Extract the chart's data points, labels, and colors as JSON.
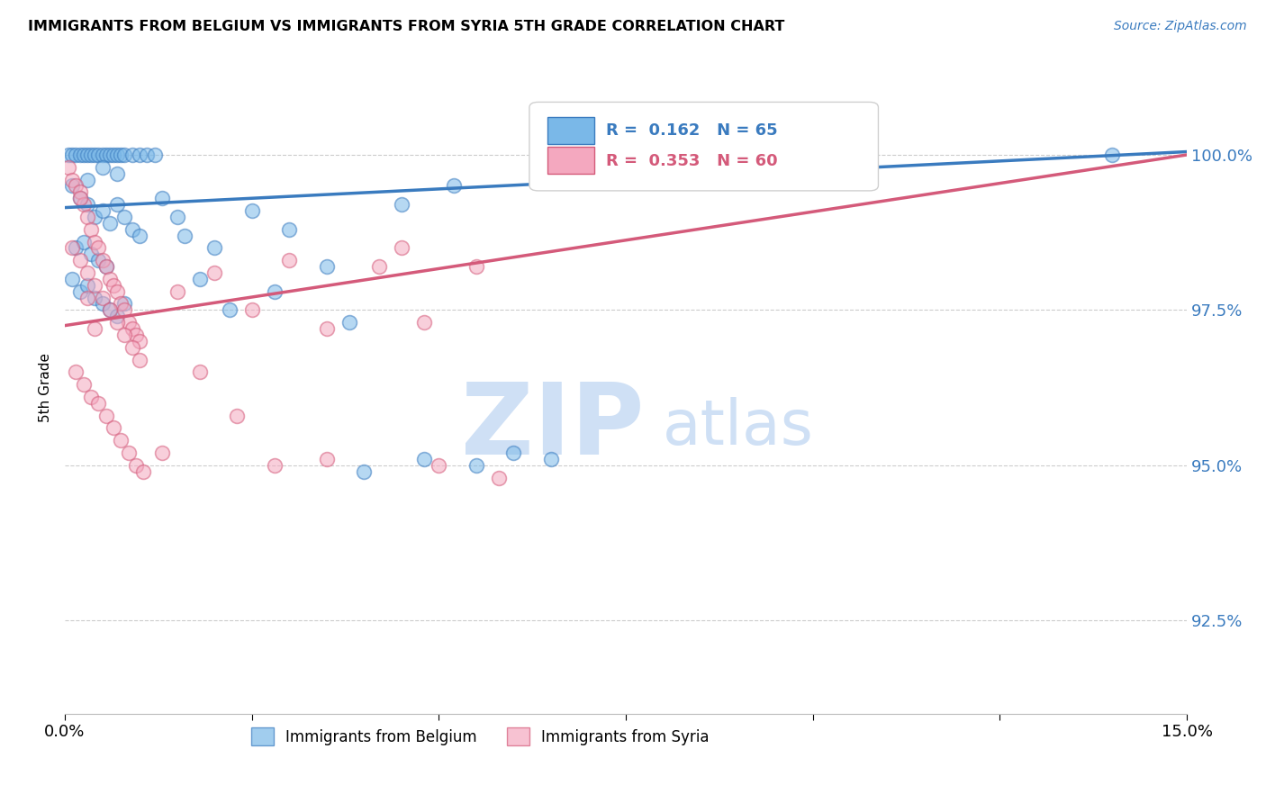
{
  "title": "IMMIGRANTS FROM BELGIUM VS IMMIGRANTS FROM SYRIA 5TH GRADE CORRELATION CHART",
  "source": "Source: ZipAtlas.com",
  "ylabel": "5th Grade",
  "y_ticks": [
    92.5,
    95.0,
    97.5,
    100.0
  ],
  "y_tick_labels": [
    "92.5%",
    "95.0%",
    "97.5%",
    "100.0%"
  ],
  "xlim": [
    0.0,
    15.0
  ],
  "ylim": [
    91.0,
    101.5
  ],
  "legend_label1": "Immigrants from Belgium",
  "legend_label2": "Immigrants from Syria",
  "R_belgium": 0.162,
  "N_belgium": 65,
  "R_syria": 0.353,
  "N_syria": 60,
  "color_belgium": "#7ab8e8",
  "color_syria": "#f4a8bf",
  "color_belgium_line": "#3a7bbf",
  "color_syria_line": "#d45a7a",
  "watermark_zip": "ZIP",
  "watermark_atlas": "atlas",
  "watermark_color": "#cfe0f5",
  "belgium_scatter": [
    [
      0.05,
      100.0
    ],
    [
      0.1,
      100.0
    ],
    [
      0.15,
      100.0
    ],
    [
      0.2,
      100.0
    ],
    [
      0.25,
      100.0
    ],
    [
      0.3,
      100.0
    ],
    [
      0.35,
      100.0
    ],
    [
      0.4,
      100.0
    ],
    [
      0.45,
      100.0
    ],
    [
      0.5,
      100.0
    ],
    [
      0.55,
      100.0
    ],
    [
      0.6,
      100.0
    ],
    [
      0.65,
      100.0
    ],
    [
      0.7,
      100.0
    ],
    [
      0.75,
      100.0
    ],
    [
      0.8,
      100.0
    ],
    [
      0.9,
      100.0
    ],
    [
      1.0,
      100.0
    ],
    [
      1.1,
      100.0
    ],
    [
      1.2,
      100.0
    ],
    [
      0.1,
      99.5
    ],
    [
      0.2,
      99.3
    ],
    [
      0.3,
      99.2
    ],
    [
      0.4,
      99.0
    ],
    [
      0.5,
      99.1
    ],
    [
      0.6,
      98.9
    ],
    [
      0.7,
      99.2
    ],
    [
      0.8,
      99.0
    ],
    [
      0.9,
      98.8
    ],
    [
      1.0,
      98.7
    ],
    [
      0.15,
      98.5
    ],
    [
      0.25,
      98.6
    ],
    [
      0.35,
      98.4
    ],
    [
      0.45,
      98.3
    ],
    [
      0.55,
      98.2
    ],
    [
      0.1,
      98.0
    ],
    [
      0.2,
      97.8
    ],
    [
      0.3,
      97.9
    ],
    [
      0.4,
      97.7
    ],
    [
      0.5,
      97.6
    ],
    [
      0.6,
      97.5
    ],
    [
      0.7,
      97.4
    ],
    [
      0.8,
      97.6
    ],
    [
      1.5,
      99.0
    ],
    [
      2.0,
      98.5
    ],
    [
      2.5,
      99.1
    ],
    [
      3.0,
      98.8
    ],
    [
      1.8,
      98.0
    ],
    [
      2.2,
      97.5
    ],
    [
      3.5,
      98.2
    ],
    [
      1.3,
      99.3
    ],
    [
      1.6,
      98.7
    ],
    [
      0.3,
      99.6
    ],
    [
      0.5,
      99.8
    ],
    [
      0.7,
      99.7
    ],
    [
      4.5,
      99.2
    ],
    [
      5.2,
      99.5
    ],
    [
      6.5,
      95.1
    ],
    [
      5.5,
      95.0
    ],
    [
      6.0,
      95.2
    ],
    [
      2.8,
      97.8
    ],
    [
      3.8,
      97.3
    ],
    [
      4.8,
      95.1
    ],
    [
      4.0,
      94.9
    ],
    [
      14.0,
      100.0
    ]
  ],
  "syria_scatter": [
    [
      0.05,
      99.8
    ],
    [
      0.1,
      99.6
    ],
    [
      0.15,
      99.5
    ],
    [
      0.2,
      99.4
    ],
    [
      0.25,
      99.2
    ],
    [
      0.3,
      99.0
    ],
    [
      0.35,
      98.8
    ],
    [
      0.4,
      98.6
    ],
    [
      0.45,
      98.5
    ],
    [
      0.5,
      98.3
    ],
    [
      0.55,
      98.2
    ],
    [
      0.6,
      98.0
    ],
    [
      0.65,
      97.9
    ],
    [
      0.7,
      97.8
    ],
    [
      0.75,
      97.6
    ],
    [
      0.8,
      97.5
    ],
    [
      0.85,
      97.3
    ],
    [
      0.9,
      97.2
    ],
    [
      0.95,
      97.1
    ],
    [
      1.0,
      97.0
    ],
    [
      0.1,
      98.5
    ],
    [
      0.2,
      98.3
    ],
    [
      0.3,
      98.1
    ],
    [
      0.4,
      97.9
    ],
    [
      0.5,
      97.7
    ],
    [
      0.6,
      97.5
    ],
    [
      0.7,
      97.3
    ],
    [
      0.8,
      97.1
    ],
    [
      0.9,
      96.9
    ],
    [
      1.0,
      96.7
    ],
    [
      0.15,
      96.5
    ],
    [
      0.25,
      96.3
    ],
    [
      0.35,
      96.1
    ],
    [
      0.45,
      96.0
    ],
    [
      0.55,
      95.8
    ],
    [
      0.65,
      95.6
    ],
    [
      0.75,
      95.4
    ],
    [
      0.85,
      95.2
    ],
    [
      0.95,
      95.0
    ],
    [
      1.05,
      94.9
    ],
    [
      1.5,
      97.8
    ],
    [
      2.0,
      98.1
    ],
    [
      2.5,
      97.5
    ],
    [
      3.0,
      98.3
    ],
    [
      3.5,
      97.2
    ],
    [
      4.5,
      98.5
    ],
    [
      5.5,
      98.2
    ],
    [
      6.5,
      99.8
    ],
    [
      1.8,
      96.5
    ],
    [
      2.3,
      95.8
    ],
    [
      2.8,
      95.0
    ],
    [
      1.3,
      95.2
    ],
    [
      4.2,
      98.2
    ],
    [
      4.8,
      97.3
    ],
    [
      0.2,
      99.3
    ],
    [
      0.3,
      97.7
    ],
    [
      0.4,
      97.2
    ],
    [
      3.5,
      95.1
    ],
    [
      5.0,
      95.0
    ],
    [
      5.8,
      94.8
    ]
  ]
}
